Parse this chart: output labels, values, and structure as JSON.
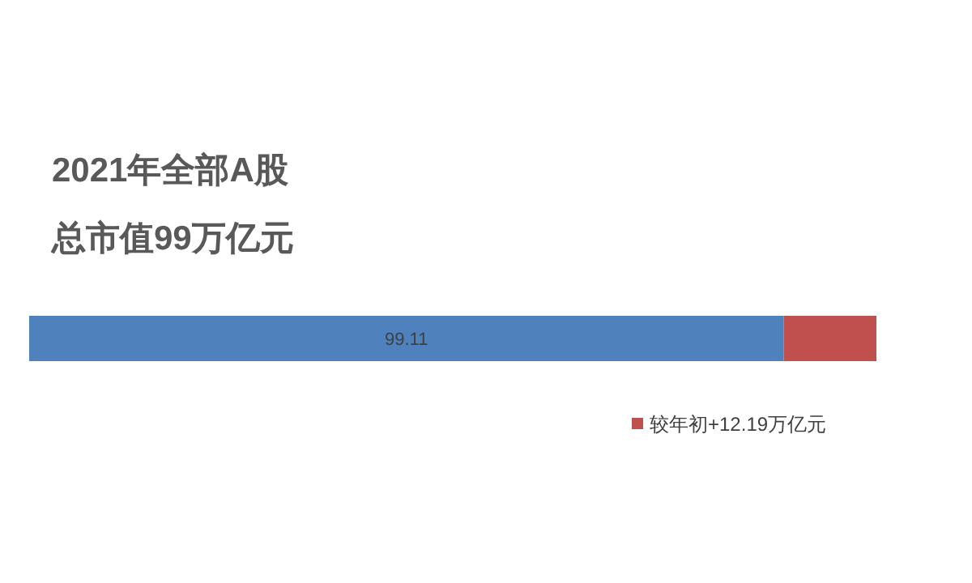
{
  "chart_data": {
    "type": "bar",
    "orientation": "horizontal",
    "stacked": true,
    "title": "2021年全部A股",
    "subtitle": "总市值99万亿元",
    "categories": [
      null
    ],
    "series": [
      {
        "color": "#4f81bd",
        "values": [
          99.11
        ],
        "value_labels": [
          "99.11"
        ]
      },
      {
        "name": "较年初+12.19万亿元",
        "color": "#c0504d",
        "values": [
          12.19
        ]
      }
    ],
    "legend": "bottom right"
  }
}
